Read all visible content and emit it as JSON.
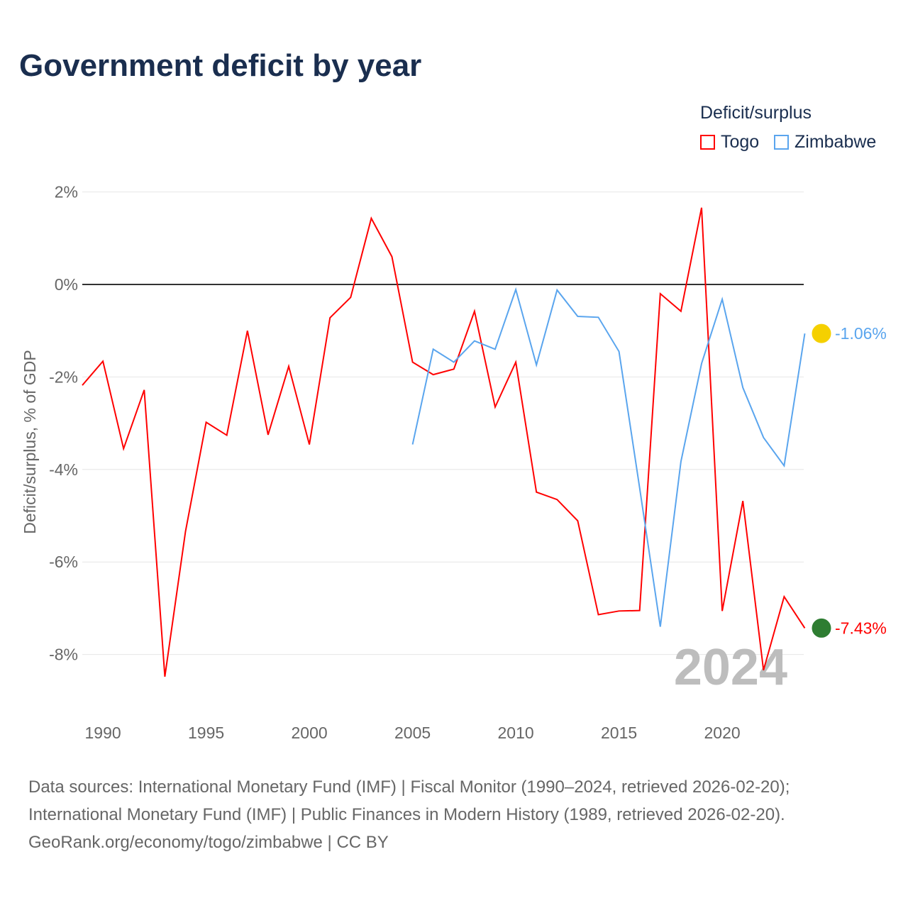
{
  "title": "Government deficit by year",
  "legend": {
    "title": "Deficit/surplus",
    "items": [
      {
        "name": "Togo",
        "color": "#ff0000"
      },
      {
        "name": "Zimbabwe",
        "color": "#5aa5ee"
      }
    ]
  },
  "year_watermark": "2024",
  "footer": [
    "Data sources: International Monetary Fund (IMF) | Fiscal Monitor (1990–2024, retrieved 2026-02-20);",
    "International Monetary Fund (IMF) | Public Finances in Modern History (1989, retrieved 2026-02-20).",
    "GeoRank.org/economy/togo/zimbabwe | CC BY"
  ],
  "chart_data": {
    "type": "line",
    "title": "Government deficit by year",
    "xlabel": "",
    "ylabel": "Deficit/surplus, % of GDP",
    "xlim": [
      1989,
      2024
    ],
    "ylim": [
      -9,
      2
    ],
    "xticks": [
      1990,
      1995,
      2000,
      2005,
      2010,
      2015,
      2020
    ],
    "yticks": [
      2,
      0,
      -2,
      -4,
      -6,
      -8
    ],
    "ytick_labels": [
      "2%",
      "0%",
      "-2%",
      "-4%",
      "-6%",
      "-8%"
    ],
    "series": [
      {
        "name": "Togo",
        "color": "#ff0000",
        "end_label": "-7.43%",
        "x": [
          1989,
          1990,
          1991,
          1992,
          1993,
          1994,
          1995,
          1996,
          1997,
          1998,
          1999,
          2000,
          2001,
          2002,
          2003,
          2004,
          2005,
          2006,
          2007,
          2008,
          2009,
          2010,
          2011,
          2012,
          2013,
          2014,
          2015,
          2016,
          2017,
          2018,
          2019,
          2020,
          2021,
          2022,
          2023,
          2024
        ],
        "values": [
          -2.18,
          -1.66,
          -3.55,
          -2.28,
          -8.48,
          -5.34,
          -2.98,
          -3.26,
          -1.0,
          -3.25,
          -1.77,
          -3.46,
          -0.72,
          -0.28,
          1.43,
          0.6,
          -1.68,
          -1.95,
          -1.83,
          -0.58,
          -2.65,
          -1.68,
          -4.49,
          -4.65,
          -5.11,
          -7.14,
          -7.06,
          -7.05,
          -0.2,
          -0.58,
          1.66,
          -7.06,
          -4.68,
          -8.34,
          -6.75,
          -7.43
        ]
      },
      {
        "name": "Zimbabwe",
        "color": "#5aa5ee",
        "end_label": "-1.06%",
        "x": [
          2005,
          2006,
          2007,
          2008,
          2009,
          2010,
          2011,
          2012,
          2013,
          2014,
          2015,
          2016,
          2017,
          2018,
          2019,
          2020,
          2021,
          2022,
          2023,
          2024
        ],
        "values": [
          -3.46,
          -1.4,
          -1.68,
          -1.22,
          -1.4,
          -0.11,
          -1.74,
          -0.12,
          -0.69,
          -0.71,
          -1.45,
          -4.4,
          -7.4,
          -3.83,
          -1.71,
          -0.32,
          -2.23,
          -3.31,
          -3.92,
          -1.06
        ]
      }
    ]
  }
}
